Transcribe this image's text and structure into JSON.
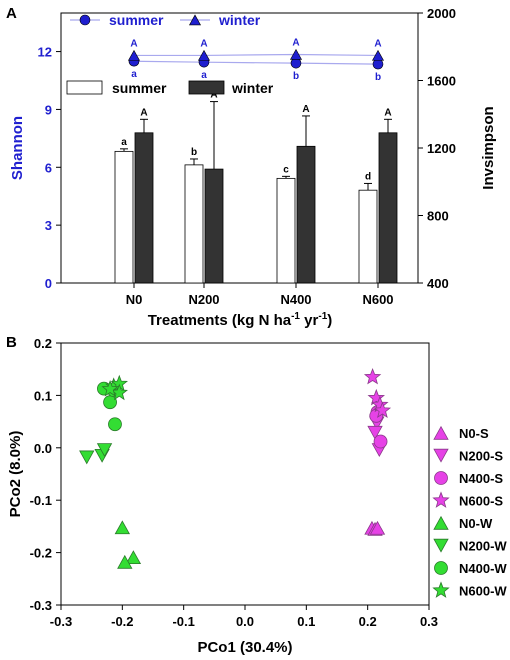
{
  "colors": {
    "summer_line": "#1f1fcf",
    "connector": "#a9a9ee",
    "summer_bar": "#ffffff",
    "winter_bar": "#333333",
    "left_axis_text": "#1f1fcf",
    "magenta": "#e642e6",
    "green": "#33dd33",
    "marker_edge": "#8a3a8a",
    "green_edge": "#2a7a2a"
  },
  "chart_data": [
    {
      "panel_label": "A",
      "type": "bar",
      "categories": [
        "N0",
        "N200",
        "N400",
        "N600"
      ],
      "xlabel": "Treatments (kg N ha",
      "xlabel_sup1": "-1",
      "xlabel_mid": " yr",
      "xlabel_sup2": "-1",
      "xlabel_end": ")",
      "ylabel_left": "Shannon",
      "ylabel_right": "Invsimpson",
      "ylim_left": [
        0,
        14
      ],
      "yticks_left": [
        0,
        3,
        6,
        9,
        12
      ],
      "ylim_right": [
        400,
        2000
      ],
      "yticks_right": [
        400,
        800,
        1200,
        1600,
        2000
      ],
      "bars": {
        "axis": "right",
        "legend": [
          "summer",
          "winter"
        ],
        "series": [
          {
            "name": "summer",
            "values": [
              1180,
              1100,
              1020,
              950
            ],
            "errors": [
              15,
              35,
              12,
              40
            ],
            "letters": [
              "a",
              "b",
              "c",
              "d"
            ]
          },
          {
            "name": "winter",
            "values": [
              1290,
              1075,
              1210,
              1290
            ],
            "errors": [
              80,
              400,
              180,
              80
            ],
            "letters": [
              "A",
              "A",
              "A",
              "A"
            ]
          }
        ]
      },
      "lines": {
        "axis": "left",
        "legend": [
          "summer",
          "winter"
        ],
        "series": [
          {
            "name": "summer",
            "marker": "circle",
            "values": [
              11.5,
              11.45,
              11.4,
              11.35
            ],
            "letters": [
              "a",
              "a",
              "b",
              "b"
            ]
          },
          {
            "name": "winter",
            "marker": "triangle",
            "values": [
              11.8,
              11.8,
              11.85,
              11.8
            ],
            "letters": [
              "A",
              "A",
              "A",
              "A"
            ]
          }
        ]
      }
    },
    {
      "panel_label": "B",
      "type": "scatter",
      "xlabel": "PCo1 (30.4%)",
      "ylabel": "PCo2 (8.0%)",
      "xlim": [
        -0.3,
        0.3
      ],
      "xticks": [
        -0.3,
        -0.2,
        -0.1,
        0.0,
        0.1,
        0.2,
        0.3
      ],
      "xtick_labels": [
        "-0.3",
        "-0.2",
        "-0.1",
        "0.0",
        "0.1",
        "0.2",
        "0.3"
      ],
      "ylim": [
        -0.3,
        0.2
      ],
      "yticks": [
        -0.3,
        -0.2,
        -0.1,
        0.0,
        0.1,
        0.2
      ],
      "ytick_labels": [
        "-0.3",
        "-0.2",
        "-0.1",
        "0.0",
        "0.1",
        "0.2"
      ],
      "series": [
        {
          "name": "N0-S",
          "marker": "triangle-up",
          "color": "magenta",
          "points": [
            [
              0.207,
              -0.153
            ],
            [
              0.212,
              -0.155
            ],
            [
              0.216,
              -0.153
            ]
          ]
        },
        {
          "name": "N200-S",
          "marker": "triangle-down",
          "color": "magenta",
          "points": [
            [
              0.215,
              0.047
            ],
            [
              0.212,
              0.029
            ],
            [
              0.219,
              -0.004
            ]
          ]
        },
        {
          "name": "N400-S",
          "marker": "circle",
          "color": "magenta",
          "points": [
            [
              0.216,
              0.068
            ],
            [
              0.214,
              0.061
            ],
            [
              0.221,
              0.012
            ]
          ]
        },
        {
          "name": "N600-S",
          "marker": "star",
          "color": "magenta",
          "points": [
            [
              0.208,
              0.135
            ],
            [
              0.214,
              0.095
            ],
            [
              0.22,
              0.082
            ],
            [
              0.224,
              0.071
            ]
          ]
        },
        {
          "name": "N0-W",
          "marker": "triangle-up",
          "color": "green",
          "points": [
            [
              -0.2,
              -0.152
            ],
            [
              -0.182,
              -0.209
            ],
            [
              -0.196,
              -0.218
            ]
          ]
        },
        {
          "name": "N200-W",
          "marker": "triangle-down",
          "color": "green",
          "points": [
            [
              -0.258,
              -0.018
            ],
            [
              -0.233,
              -0.015
            ],
            [
              -0.229,
              -0.004
            ]
          ]
        },
        {
          "name": "N400-W",
          "marker": "circle",
          "color": "green",
          "points": [
            [
              -0.23,
              0.113
            ],
            [
              -0.22,
              0.087
            ],
            [
              -0.212,
              0.045
            ],
            [
              -0.214,
              0.11
            ]
          ]
        },
        {
          "name": "N600-W",
          "marker": "star",
          "color": "green",
          "points": [
            [
              -0.214,
              0.117
            ],
            [
              -0.205,
              0.122
            ],
            [
              -0.205,
              0.105
            ],
            [
              -0.22,
              0.112
            ]
          ]
        }
      ]
    }
  ]
}
